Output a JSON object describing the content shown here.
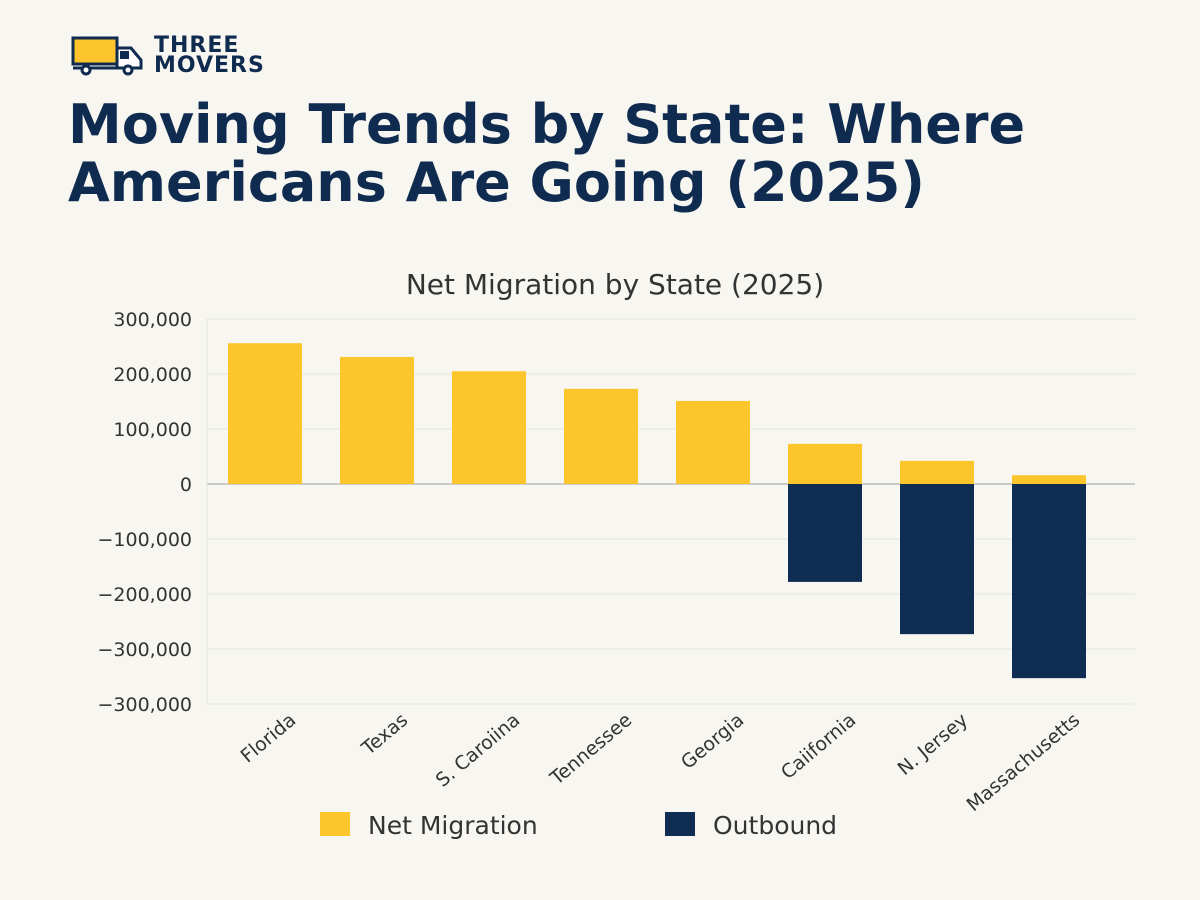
{
  "brand": {
    "line1": "THREE",
    "line2": "MOVERS",
    "icon": "truck-icon",
    "colors": {
      "navy": "#0f2b4f",
      "yellow": "#fbc52b"
    }
  },
  "headline": "Moving Trends by State: Where Americans Are Going (2025)",
  "chart_data": {
    "type": "bar",
    "title": "Net Migration by State (2025)",
    "categories": [
      "Florida",
      "Texas",
      "S. Caroiina",
      "Tennessee",
      "Georgia",
      "Caiifornia",
      "N. Jersey",
      "Massachusetts"
    ],
    "series": [
      {
        "name": "Net Migration",
        "color": "#fbc52b",
        "values": [
          256000,
          231000,
          205000,
          173000,
          151000,
          73000,
          42000,
          16000
        ]
      },
      {
        "name": "Outbound",
        "color": "#0f2d52",
        "values": [
          0,
          0,
          0,
          0,
          0,
          -178000,
          -273000,
          -353000
        ]
      }
    ],
    "yticks": [
      "300,000",
      "200,000",
      "100,000",
      "0",
      "−100,000",
      "−200,000",
      "−300,000",
      "−300,000"
    ],
    "ylim": [
      -400000,
      300000
    ],
    "grid": true,
    "legend": "bottom"
  }
}
